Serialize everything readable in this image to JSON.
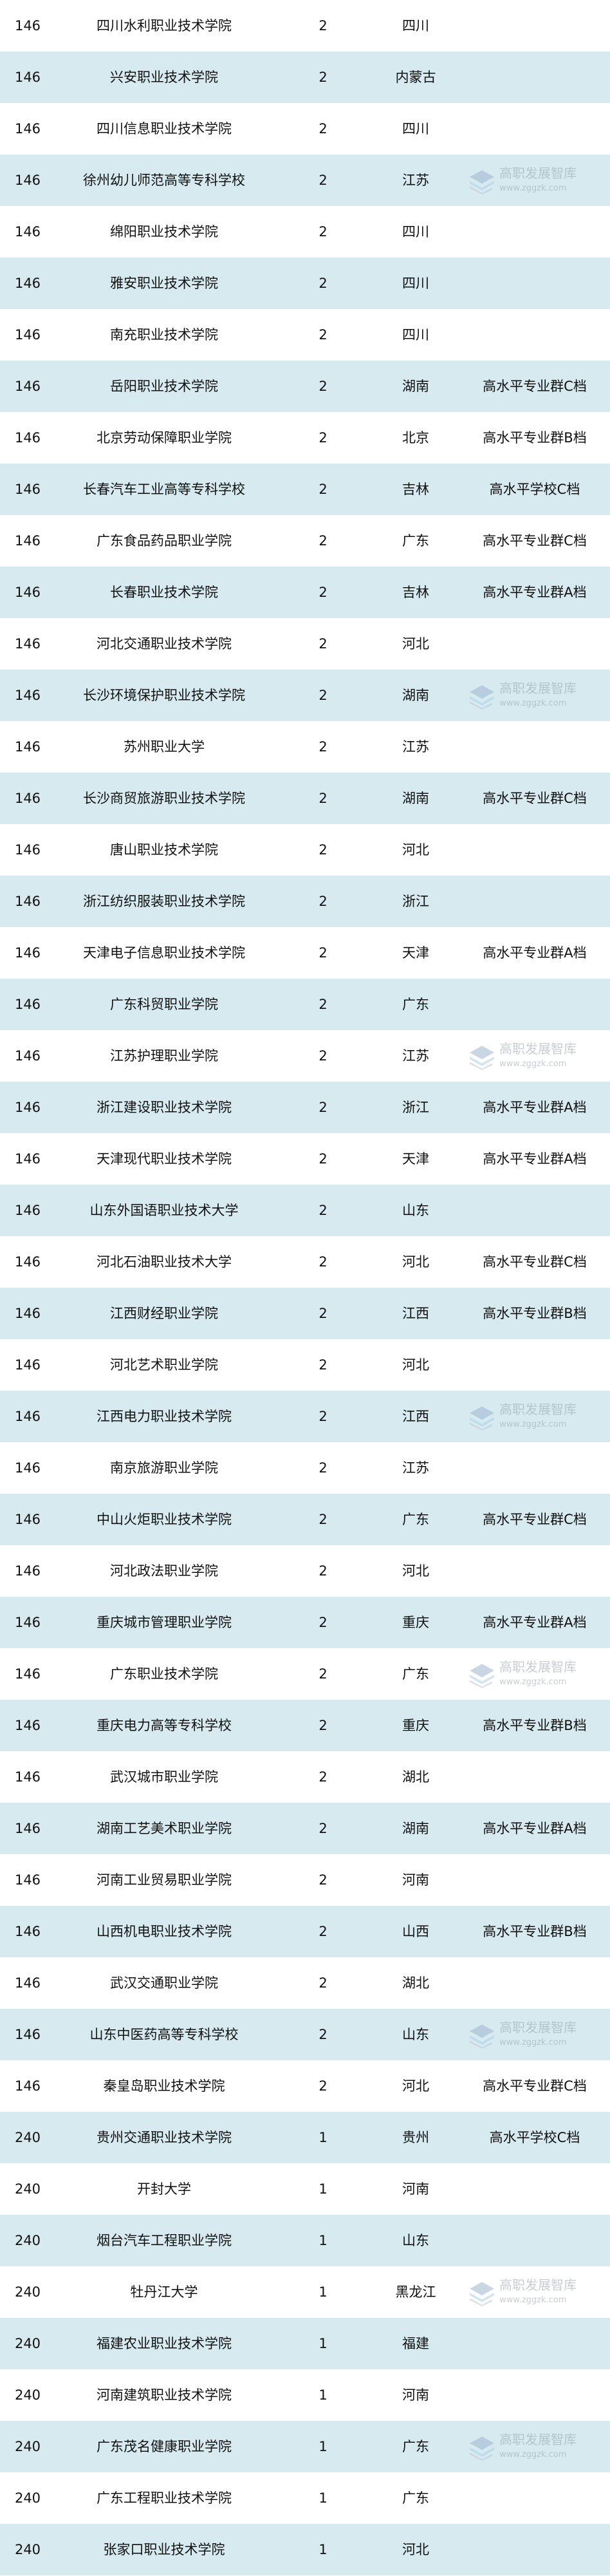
{
  "colors": {
    "row_shade": "#d6eaf0",
    "text": "#111111",
    "watermark": "#b9c3cc"
  },
  "watermark": {
    "title": "高职发展智库",
    "url": "www.zggzk.com",
    "icon": "stacked-books-logo"
  },
  "rows": [
    [
      "146",
      "四川水利职业技术学院",
      "2",
      "四川",
      ""
    ],
    [
      "146",
      "兴安职业技术学院",
      "2",
      "内蒙古",
      ""
    ],
    [
      "146",
      "四川信息职业技术学院",
      "2",
      "四川",
      ""
    ],
    [
      "146",
      "徐州幼儿师范高等专科学校",
      "2",
      "江苏",
      ""
    ],
    [
      "146",
      "绵阳职业技术学院",
      "2",
      "四川",
      ""
    ],
    [
      "146",
      "雅安职业技术学院",
      "2",
      "四川",
      ""
    ],
    [
      "146",
      "南充职业技术学院",
      "2",
      "四川",
      ""
    ],
    [
      "146",
      "岳阳职业技术学院",
      "2",
      "湖南",
      "高水平专业群C档"
    ],
    [
      "146",
      "北京劳动保障职业学院",
      "2",
      "北京",
      "高水平专业群B档"
    ],
    [
      "146",
      "长春汽车工业高等专科学校",
      "2",
      "吉林",
      "高水平学校C档"
    ],
    [
      "146",
      "广东食品药品职业学院",
      "2",
      "广东",
      "高水平专业群C档"
    ],
    [
      "146",
      "长春职业技术学院",
      "2",
      "吉林",
      "高水平专业群A档"
    ],
    [
      "146",
      "河北交通职业技术学院",
      "2",
      "河北",
      ""
    ],
    [
      "146",
      "长沙环境保护职业技术学院",
      "2",
      "湖南",
      ""
    ],
    [
      "146",
      "苏州职业大学",
      "2",
      "江苏",
      ""
    ],
    [
      "146",
      "长沙商贸旅游职业技术学院",
      "2",
      "湖南",
      "高水平专业群C档"
    ],
    [
      "146",
      "唐山职业技术学院",
      "2",
      "河北",
      ""
    ],
    [
      "146",
      "浙江纺织服装职业技术学院",
      "2",
      "浙江",
      ""
    ],
    [
      "146",
      "天津电子信息职业技术学院",
      "2",
      "天津",
      "高水平专业群A档"
    ],
    [
      "146",
      "广东科贸职业学院",
      "2",
      "广东",
      ""
    ],
    [
      "146",
      "江苏护理职业学院",
      "2",
      "江苏",
      ""
    ],
    [
      "146",
      "浙江建设职业技术学院",
      "2",
      "浙江",
      "高水平专业群A档"
    ],
    [
      "146",
      "天津现代职业技术学院",
      "2",
      "天津",
      "高水平专业群A档"
    ],
    [
      "146",
      "山东外国语职业技术大学",
      "2",
      "山东",
      ""
    ],
    [
      "146",
      "河北石油职业技术大学",
      "2",
      "河北",
      "高水平专业群C档"
    ],
    [
      "146",
      "江西财经职业学院",
      "2",
      "江西",
      "高水平专业群B档"
    ],
    [
      "146",
      "河北艺术职业学院",
      "2",
      "河北",
      ""
    ],
    [
      "146",
      "江西电力职业技术学院",
      "2",
      "江西",
      ""
    ],
    [
      "146",
      "南京旅游职业学院",
      "2",
      "江苏",
      ""
    ],
    [
      "146",
      "中山火炬职业技术学院",
      "2",
      "广东",
      "高水平专业群C档"
    ],
    [
      "146",
      "河北政法职业学院",
      "2",
      "河北",
      ""
    ],
    [
      "146",
      "重庆城市管理职业学院",
      "2",
      "重庆",
      "高水平专业群A档"
    ],
    [
      "146",
      "广东职业技术学院",
      "2",
      "广东",
      ""
    ],
    [
      "146",
      "重庆电力高等专科学校",
      "2",
      "重庆",
      "高水平专业群B档"
    ],
    [
      "146",
      "武汉城市职业学院",
      "2",
      "湖北",
      ""
    ],
    [
      "146",
      "湖南工艺美术职业学院",
      "2",
      "湖南",
      "高水平专业群A档"
    ],
    [
      "146",
      "河南工业贸易职业学院",
      "2",
      "河南",
      ""
    ],
    [
      "146",
      "山西机电职业技术学院",
      "2",
      "山西",
      "高水平专业群B档"
    ],
    [
      "146",
      "武汉交通职业学院",
      "2",
      "湖北",
      ""
    ],
    [
      "146",
      "山东中医药高等专科学校",
      "2",
      "山东",
      ""
    ],
    [
      "146",
      "秦皇岛职业技术学院",
      "2",
      "河北",
      "高水平专业群C档"
    ],
    [
      "240",
      "贵州交通职业技术学院",
      "1",
      "贵州",
      "高水平学校C档"
    ],
    [
      "240",
      "开封大学",
      "1",
      "河南",
      ""
    ],
    [
      "240",
      "烟台汽车工程职业学院",
      "1",
      "山东",
      ""
    ],
    [
      "240",
      "牡丹江大学",
      "1",
      "黑龙江",
      ""
    ],
    [
      "240",
      "福建农业职业技术学院",
      "1",
      "福建",
      ""
    ],
    [
      "240",
      "河南建筑职业技术学院",
      "1",
      "河南",
      ""
    ],
    [
      "240",
      "广东茂名健康职业学院",
      "1",
      "广东",
      ""
    ],
    [
      "240",
      "广东工程职业技术学院",
      "1",
      "广东",
      ""
    ],
    [
      "240",
      "张家口职业技术学院",
      "1",
      "河北",
      ""
    ]
  ]
}
